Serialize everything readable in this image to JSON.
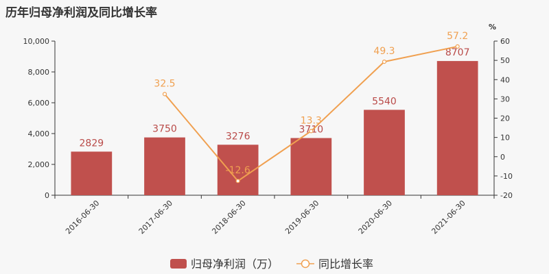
{
  "title": "历年归母净利润及同比增长率",
  "chart_data": {
    "type": "bar",
    "categories": [
      "2016-06-30",
      "2017-06-30",
      "2018-06-30",
      "2019-06-30",
      "2020-06-30",
      "2021-06-30"
    ],
    "series": [
      {
        "name": "归母净利润（万）",
        "type": "bar",
        "axis": "left",
        "values": [
          2829,
          3750,
          3276,
          3710,
          5540,
          8707
        ],
        "labels": [
          "2829",
          "3750",
          "3276",
          "3710",
          "5540",
          "8707"
        ],
        "color": "#c0504d"
      },
      {
        "name": "同比增长率",
        "type": "line",
        "axis": "right",
        "values": [
          null,
          32.5,
          -12.6,
          13.3,
          49.3,
          57.2
        ],
        "labels": [
          "",
          "32.5",
          "-12.6",
          "13.3",
          "49.3",
          "57.2"
        ],
        "color": "#f0a050"
      }
    ],
    "ylim": [
      0,
      10000
    ],
    "yticks": [
      "0",
      "2,000",
      "4,000",
      "6,000",
      "8,000",
      "10,000"
    ],
    "y2lim": [
      -20,
      60
    ],
    "y2ticks": [
      "-20",
      "-10",
      "0",
      "10",
      "20",
      "30",
      "40",
      "50",
      "60"
    ],
    "y2label": "%",
    "legend": "bottom"
  }
}
